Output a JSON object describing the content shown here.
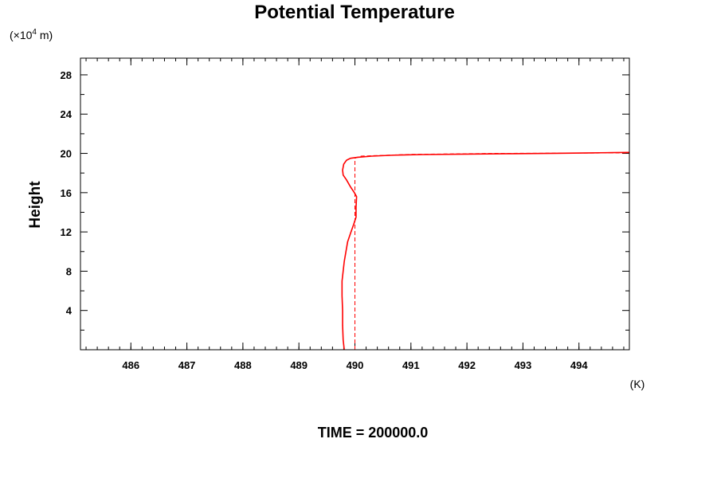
{
  "chart_data": {
    "type": "line",
    "title": "Potential Temperature",
    "xlabel": "",
    "x_unit": "(K)",
    "ylabel": "Height",
    "y_unit_prefix": "(×10",
    "y_unit_exponent": "4",
    "y_unit_suffix": " m)",
    "footer": "TIME = 200000.0",
    "xlim": [
      485.1,
      494.9
    ],
    "ylim": [
      0.0,
      29.7
    ],
    "x_ticks": [
      486,
      487,
      488,
      489,
      490,
      491,
      492,
      493,
      494
    ],
    "x_tick_labels": [
      "486",
      "487",
      "488",
      "489",
      "490",
      "491",
      "492",
      "493",
      "494"
    ],
    "y_ticks": [
      4,
      8,
      12,
      16,
      20,
      24,
      28
    ],
    "y_tick_labels": [
      "4",
      "8",
      "12",
      "16",
      "20",
      "24",
      "28"
    ],
    "grid": false,
    "series": [
      {
        "style": "solid",
        "color": "#ff0000",
        "points": [
          [
            489.81,
            0.0
          ],
          [
            489.79,
            1.0
          ],
          [
            489.78,
            2.5
          ],
          [
            489.78,
            4.0
          ],
          [
            489.77,
            5.5
          ],
          [
            489.77,
            7.0
          ],
          [
            489.79,
            8.0
          ],
          [
            489.81,
            9.0
          ],
          [
            489.84,
            10.0
          ],
          [
            489.87,
            11.0
          ],
          [
            489.93,
            12.0
          ],
          [
            489.98,
            12.8
          ],
          [
            490.02,
            13.5
          ],
          [
            490.02,
            14.5
          ],
          [
            490.03,
            15.6
          ],
          [
            489.99,
            16.0
          ],
          [
            489.92,
            16.6
          ],
          [
            489.85,
            17.3
          ],
          [
            489.79,
            17.8
          ],
          [
            489.78,
            18.3
          ],
          [
            489.8,
            18.9
          ],
          [
            489.85,
            19.3
          ],
          [
            489.92,
            19.5
          ],
          [
            490.05,
            19.6
          ],
          [
            490.3,
            19.72
          ],
          [
            490.7,
            19.82
          ],
          [
            491.2,
            19.88
          ],
          [
            492.0,
            19.93
          ],
          [
            492.8,
            19.97
          ],
          [
            493.6,
            20.01
          ],
          [
            494.2,
            20.05
          ],
          [
            494.6,
            20.08
          ],
          [
            494.9,
            20.1
          ]
        ]
      },
      {
        "style": "dashed",
        "color": "#ff0000",
        "points": [
          [
            490.0,
            0.0
          ],
          [
            490.0,
            19.5
          ],
          [
            490.1,
            19.72
          ],
          [
            491.0,
            19.9
          ],
          [
            492.5,
            20.0
          ],
          [
            494.9,
            20.05
          ]
        ]
      }
    ]
  }
}
